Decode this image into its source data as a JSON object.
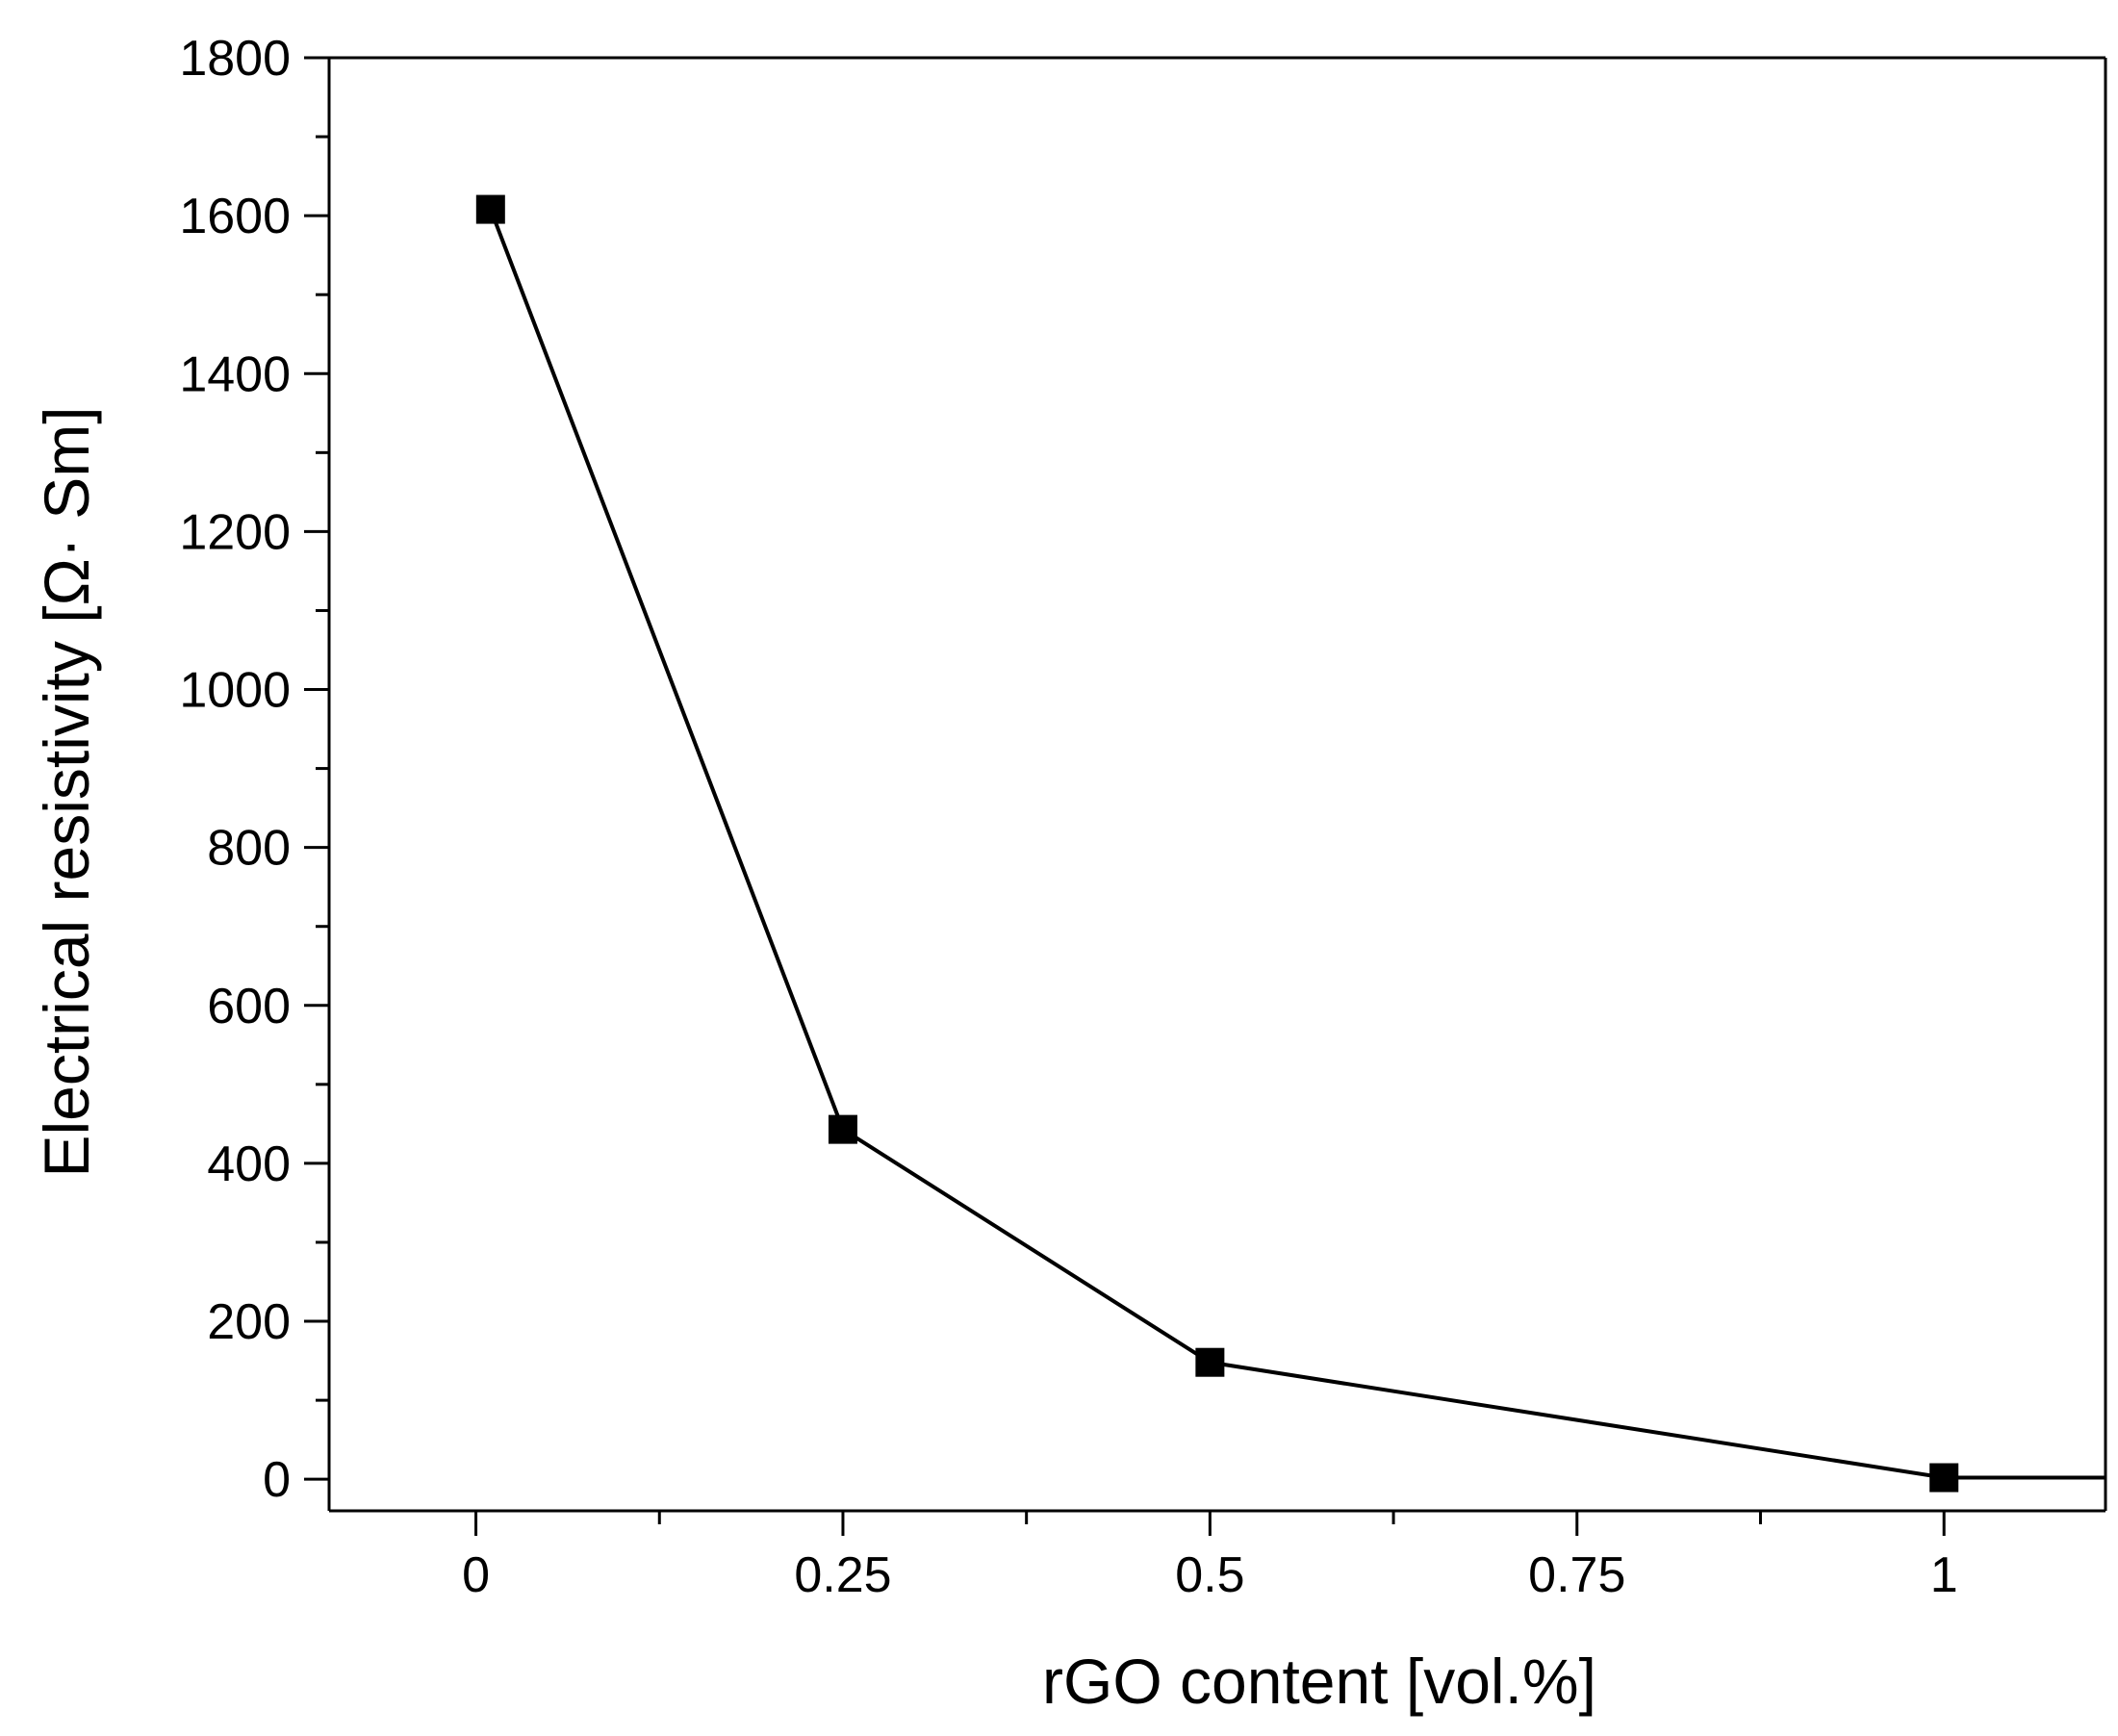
{
  "chart_data": {
    "type": "line",
    "xlabel": "rGO content [vol.%]",
    "ylabel": "Electrical resistivity [Ω· Sm]",
    "xlim": [
      -0.1,
      1.11
    ],
    "ylim": [
      -40,
      1800
    ],
    "x_ticks": [
      0,
      0.25,
      0.5,
      0.75,
      1
    ],
    "x_tick_labels": [
      "0",
      "0.25",
      "0.5",
      "0.75",
      "1"
    ],
    "y_ticks": [
      0,
      200,
      400,
      600,
      800,
      1000,
      1200,
      1400,
      1600,
      1800
    ],
    "y_tick_labels": [
      "0",
      "200",
      "400",
      "600",
      "800",
      "1000",
      "1200",
      "1400",
      "1600",
      "1800"
    ],
    "grid": false,
    "legend": "none",
    "marker": "square",
    "color": "#000000",
    "series": [
      {
        "x": [
          0.01,
          0.25,
          0.5,
          1.0
        ],
        "y": [
          1608,
          443,
          148,
          2
        ]
      }
    ]
  }
}
